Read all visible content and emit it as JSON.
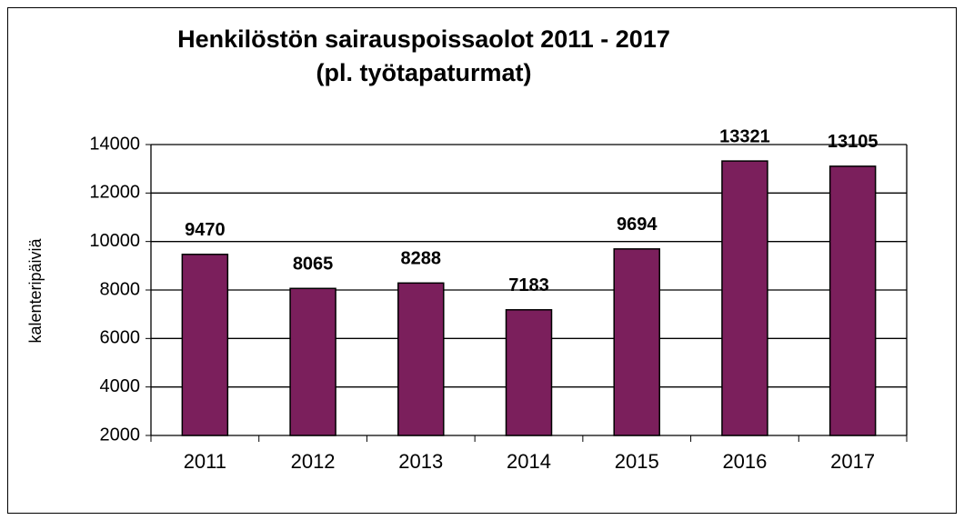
{
  "chart_data": {
    "type": "bar",
    "title": "Henkilöstön sairauspoissaolot 2011 - 2017",
    "subtitle": "(pl. työtapaturmat)",
    "y_label": "kalenteripäiviä",
    "categories": [
      "2011",
      "2012",
      "2013",
      "2014",
      "2015",
      "2016",
      "2017"
    ],
    "values": [
      9470,
      8065,
      8288,
      7183,
      9694,
      13321,
      13105
    ],
    "color": "#7b1f5c",
    "ylim": [
      2000,
      14000
    ],
    "yticks": [
      2000,
      4000,
      6000,
      8000,
      10000,
      12000,
      14000
    ],
    "grid": true
  }
}
